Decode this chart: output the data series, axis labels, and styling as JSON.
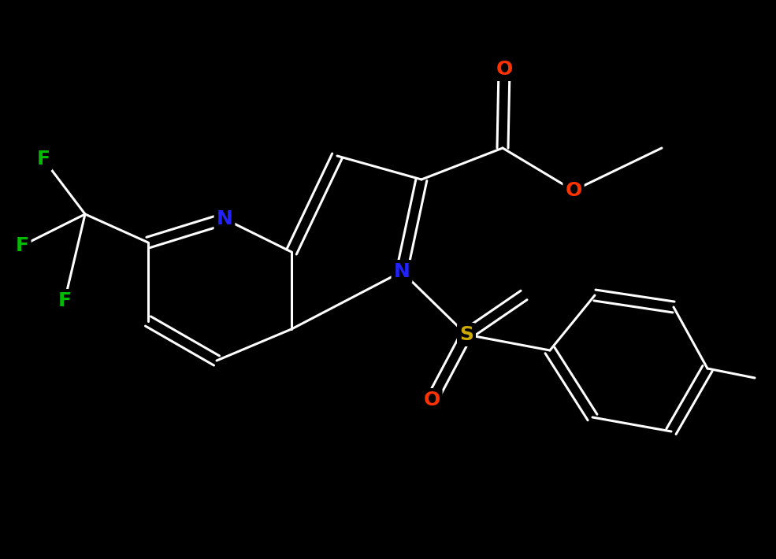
{
  "background_color": "#000000",
  "bond_color": "#ffffff",
  "bond_lw": 2.2,
  "doffset": 14,
  "atom_colors": {
    "N": "#2222ff",
    "O": "#ff3300",
    "F": "#00bb00",
    "S": "#ccaa00"
  },
  "font_size": 18,
  "fig_width": 9.85,
  "fig_height": 7.1,
  "dpi": 100
}
